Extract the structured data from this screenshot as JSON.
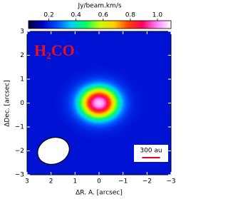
{
  "chart_data": {
    "type": "image",
    "colorbar_label": "Jy/beam.km/s",
    "clim": [
      0.05,
      1.1
    ],
    "cticks": [
      0.2,
      0.4,
      0.6,
      0.8,
      {
        "value": 1,
        "label": "1.0"
      }
    ],
    "colormap": [
      "#00003c",
      "#0000c8",
      "#0050ff",
      "#00d0ff",
      "#00ff60",
      "#c8ff00",
      "#ffd000",
      "#ff4000",
      "#ff0060",
      "#ff80ff",
      "#ffffff"
    ],
    "annotation": "H₂CO",
    "x_label": "ΔR. A. [arcsec]",
    "y_label": "ΔDec. [arcsec]",
    "xlim": [
      3,
      -3
    ],
    "ylim": [
      -3,
      3
    ],
    "xticks": [
      3,
      2,
      1,
      0,
      {
        "value": -1,
        "label": "−1"
      },
      {
        "value": -2,
        "label": "−2"
      },
      {
        "value": -3,
        "label": "−3"
      }
    ],
    "yticks": [
      {
        "value": -3,
        "label": "−3"
      },
      {
        "value": -2,
        "label": "−2"
      },
      {
        "value": -1,
        "label": "−1"
      },
      0,
      1,
      2,
      3
    ],
    "background": 0.18,
    "source": {
      "x": 0,
      "y": 0,
      "peak": 1.05,
      "fwhm": [
        1.25,
        1.05
      ]
    },
    "beam": {
      "x": 1.9,
      "y": -2.0,
      "major": 1.35,
      "minor": 1.1,
      "angle": -20
    },
    "scale_bar": {
      "label": "300 au",
      "length": 0.75
    }
  }
}
